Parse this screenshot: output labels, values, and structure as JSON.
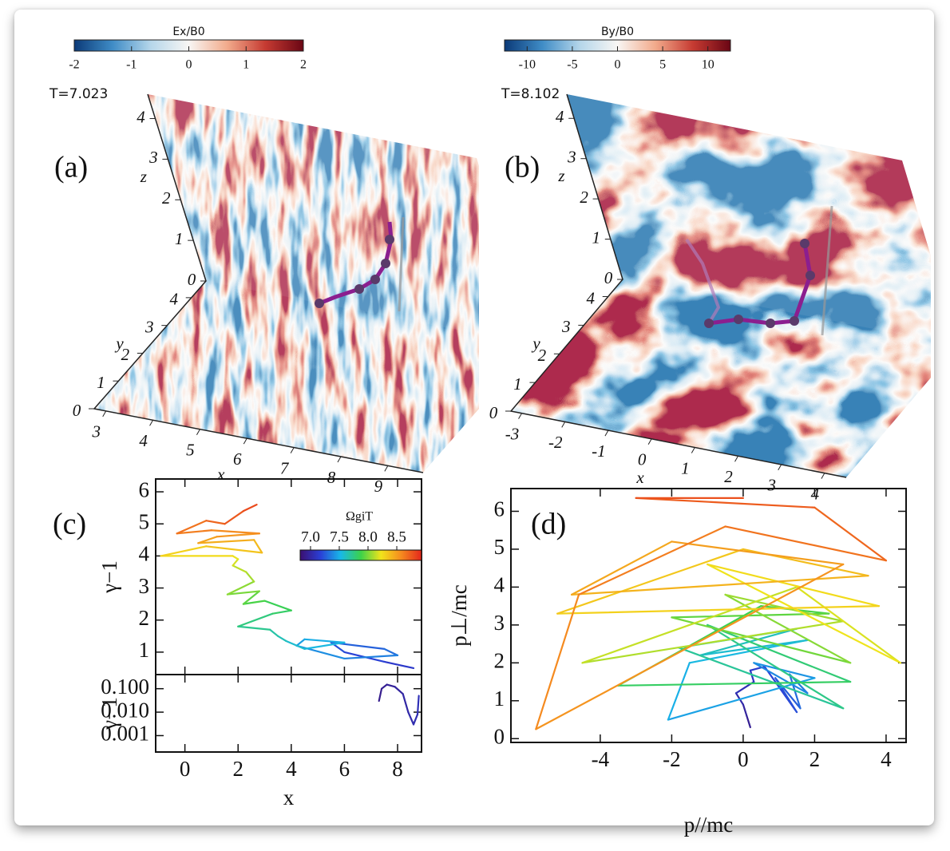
{
  "chart_data": [
    {
      "type": "field3d",
      "panel_label": "(a)",
      "time_label": "T=7.023",
      "colorbar": {
        "label": "Ex/B0",
        "lim": [
          -2,
          2
        ],
        "ticks": [
          -2,
          -1,
          0,
          1,
          2
        ],
        "colors": [
          "#0b3a78",
          "#3f8cc6",
          "#b5d6ea",
          "#f8f6f4",
          "#f2ab8c",
          "#c63b32",
          "#6a0614"
        ]
      },
      "texture": "striped",
      "xlabel": "x",
      "ylabel": "y",
      "zlabel": "z",
      "xlim": [
        2.75,
        9.75
      ],
      "xticks": [
        3,
        4,
        5,
        6,
        7,
        8,
        9
      ],
      "ylim": [
        0,
        4.6
      ],
      "yticks": [
        0,
        1,
        2,
        3,
        4
      ],
      "zlim": [
        0,
        4.6
      ],
      "zticks": [
        0,
        1,
        2,
        3,
        4
      ]
    },
    {
      "type": "field3d",
      "panel_label": "(b)",
      "time_label": "T=8.102",
      "colorbar": {
        "label": "By/B0",
        "lim": [
          -12.5,
          12.5
        ],
        "ticks": [
          -10,
          -5,
          0,
          5,
          10
        ],
        "colors": [
          "#0b3a78",
          "#3f8cc6",
          "#b5d6ea",
          "#f8f6f4",
          "#f2ab8c",
          "#c63b32",
          "#6a0614"
        ]
      },
      "texture": "blobby",
      "xlabel": "x",
      "ylabel": "y",
      "zlabel": "z",
      "xlim": [
        -3.25,
        4.5
      ],
      "xticks": [
        -3,
        -2,
        -1,
        0,
        1,
        2,
        3,
        4
      ],
      "ylim": [
        0,
        4.6
      ],
      "yticks": [
        0,
        1,
        2,
        3,
        4
      ],
      "zlim": [
        0,
        4.6
      ],
      "zticks": [
        0,
        1,
        2,
        3,
        4
      ]
    },
    {
      "type": "trajectory",
      "panel_label": "(c)",
      "xlabel": "x",
      "ylabel": "γ−1",
      "xlim": [
        -1.1,
        8.9
      ],
      "xticks": [
        0,
        2,
        4,
        6,
        8
      ],
      "ylim": [
        0.3,
        6.4
      ],
      "yticks": [
        1,
        2,
        3,
        4,
        5,
        6
      ],
      "colormap": [
        "#3b0f70",
        "#2a3fd6",
        "#18b8e8",
        "#3cd24a",
        "#f2e41b",
        "#f58a1f",
        "#e3261c"
      ],
      "colorbar": {
        "label": "ΩgiT",
        "lim": [
          6.82,
          8.93
        ],
        "ticks": [
          {
            "value": 7,
            "label": "7.0"
          },
          7.5,
          {
            "value": 8,
            "label": "8.0"
          },
          8.5
        ]
      },
      "x": [
        8.6,
        7.5,
        6,
        5.5,
        7.5,
        8.0,
        6,
        4.2,
        4.5,
        6,
        4.5,
        3.8,
        3.5,
        3.2,
        2,
        3.3,
        4,
        3,
        2.2,
        2.8,
        1.6,
        2.6,
        2.3,
        1.8,
        2,
        1.8,
        -0.9,
        0.8,
        2.9,
        2.6,
        0.5,
        1.2,
        2.8,
        1.0,
        -0.3,
        0.8,
        1.5,
        2.2,
        2.7
      ],
      "values": [
        0.5,
        0.7,
        1.0,
        1.3,
        1.1,
        0.9,
        0.8,
        1.2,
        1.4,
        1.3,
        1.1,
        1.35,
        1.5,
        1.7,
        1.8,
        2.2,
        2.3,
        2.6,
        2.5,
        2.9,
        2.8,
        3.2,
        3.5,
        3.7,
        3.9,
        4.0,
        4.0,
        4.3,
        4.1,
        4.5,
        4.4,
        4.6,
        4.7,
        4.8,
        4.7,
        5.1,
        5.0,
        5.4,
        5.6
      ],
      "time": [
        7.08,
        7.13,
        7.18,
        7.22,
        7.27,
        7.31,
        7.36,
        7.4,
        7.45,
        7.49,
        7.54,
        7.58,
        7.63,
        7.67,
        7.72,
        7.76,
        7.81,
        7.85,
        7.9,
        7.94,
        7.99,
        8.03,
        8.08,
        8.12,
        8.17,
        8.21,
        8.26,
        8.3,
        8.35,
        8.39,
        8.44,
        8.48,
        8.53,
        8.57,
        8.62,
        8.66,
        8.71,
        8.75,
        8.8
      ],
      "lower": {
        "ylabel": "γ−1",
        "log_scale": true,
        "ylim": [
          0.0002,
          0.4
        ],
        "yticks": [
          {
            "value": 0.001,
            "label": "0.001"
          },
          {
            "value": 0.01,
            "label": "0.010"
          },
          {
            "value": 0.1,
            "label": "0.100"
          }
        ],
        "x": [
          7.3,
          7.4,
          7.6,
          7.9,
          8.2,
          8.4,
          8.6,
          8.75,
          8.8
        ],
        "values": [
          0.03,
          0.1,
          0.15,
          0.12,
          0.06,
          0.01,
          0.003,
          0.008,
          0.05
        ],
        "time": [
          6.9,
          6.92,
          6.94,
          6.96,
          6.98,
          7.0,
          7.02,
          7.04,
          7.06
        ]
      }
    },
    {
      "type": "trajectory",
      "panel_label": "(d)",
      "xlabel": "p//mc",
      "ylabel": "p⊥/mc",
      "xlim": [
        -6.5,
        4.56
      ],
      "xticks": [
        -4,
        -2,
        0,
        2,
        4
      ],
      "ylim": [
        -0.1,
        6.6
      ],
      "yticks": [
        0,
        1,
        2,
        3,
        4,
        5,
        6
      ],
      "colormap": [
        "#3b0f70",
        "#2a3fd6",
        "#18b8e8",
        "#3cd24a",
        "#f2e41b",
        "#f58a1f",
        "#e3261c"
      ],
      "x": [
        0.2,
        0.1,
        0.0,
        -0.2,
        0.3,
        0.2,
        0.6,
        1.5,
        0.9,
        1.6,
        1.3,
        1.8,
        0.3,
        2.0,
        -2.1,
        -1.5,
        1.8,
        -1.2,
        1.5,
        -1.8,
        2.8,
        -1.0,
        3.0,
        -3.5,
        0.5,
        2.4,
        -2.0,
        3.0,
        -0.5,
        2.8,
        -4.5,
        1.5,
        4.4,
        -1.0,
        3.8,
        -5.2,
        0.0,
        3.5,
        -4.8,
        -2.0,
        2.8,
        -5.8,
        -4.6,
        -0.5,
        4.0,
        2.0,
        -3.0,
        0.0
      ],
      "values": [
        0.3,
        0.6,
        0.9,
        1.2,
        1.5,
        1.8,
        1.9,
        0.7,
        1.6,
        0.8,
        1.7,
        1.2,
        2.0,
        1.6,
        0.5,
        2.0,
        2.6,
        2.2,
        2.9,
        2.4,
        0.8,
        3.0,
        1.5,
        1.4,
        3.5,
        3.3,
        3.2,
        2.0,
        3.8,
        3.1,
        2.0,
        4.0,
        2.0,
        4.6,
        3.5,
        3.3,
        5.0,
        4.3,
        3.8,
        5.2,
        4.6,
        0.25,
        3.8,
        5.6,
        4.7,
        6.1,
        6.35,
        6.35
      ],
      "time": [
        6.9,
        6.94,
        6.98,
        7.02,
        7.06,
        7.1,
        7.14,
        7.18,
        7.22,
        7.26,
        7.3,
        7.34,
        7.38,
        7.42,
        7.46,
        7.5,
        7.54,
        7.58,
        7.62,
        7.66,
        7.7,
        7.74,
        7.78,
        7.82,
        7.86,
        7.9,
        7.94,
        7.98,
        8.02,
        8.06,
        8.1,
        8.14,
        8.18,
        8.22,
        8.26,
        8.3,
        8.34,
        8.38,
        8.42,
        8.46,
        8.5,
        8.54,
        8.58,
        8.62,
        8.66,
        8.7,
        8.74,
        8.78
      ]
    }
  ]
}
